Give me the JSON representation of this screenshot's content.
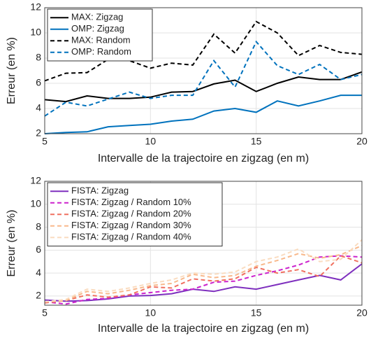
{
  "chart_data": [
    {
      "type": "line",
      "xlabel": "Intervalle de la trajectoire en zigzag (en m)",
      "ylabel": "Erreur (en %)",
      "x": [
        5,
        6,
        7,
        8,
        9,
        10,
        11,
        12,
        13,
        14,
        15,
        16,
        17,
        18,
        19,
        20
      ],
      "xlim": [
        5,
        20
      ],
      "xticks": [
        5,
        10,
        15,
        20
      ],
      "ylim": [
        2,
        12
      ],
      "yticks": [
        2,
        4,
        6,
        8,
        10,
        12
      ],
      "grid": true,
      "legend": "upper left",
      "series": [
        {
          "name": "MAX:  Zigzag",
          "color": "#000000",
          "linestyle": "solid",
          "values": [
            4.7,
            4.55,
            5.0,
            4.8,
            4.8,
            4.9,
            5.3,
            5.35,
            5.95,
            6.25,
            5.35,
            6.0,
            6.5,
            6.3,
            6.3,
            6.9
          ]
        },
        {
          "name": "OMP: Zigzag",
          "color": "#0072bd",
          "linestyle": "solid",
          "values": [
            2.0,
            2.1,
            2.15,
            2.55,
            2.65,
            2.75,
            3.0,
            3.15,
            3.8,
            4.0,
            3.7,
            4.6,
            4.2,
            4.6,
            5.05,
            5.05
          ]
        },
        {
          "name": "MAX:  Random",
          "color": "#000000",
          "linestyle": "dashed",
          "values": [
            6.2,
            6.8,
            6.85,
            7.9,
            7.8,
            7.2,
            7.6,
            7.45,
            9.9,
            8.4,
            10.9,
            10.0,
            8.2,
            9.0,
            8.45,
            8.3
          ]
        },
        {
          "name": "OMP: Random",
          "color": "#0072bd",
          "linestyle": "dashed",
          "values": [
            3.4,
            4.5,
            4.2,
            4.75,
            5.3,
            4.8,
            5.05,
            5.05,
            7.8,
            5.7,
            9.3,
            7.4,
            6.7,
            7.5,
            6.3,
            6.7
          ]
        }
      ]
    },
    {
      "type": "line",
      "xlabel": "Intervalle de la trajectoire en zigzag (en m)",
      "ylabel": "Erreur (en %)",
      "x": [
        5,
        6,
        7,
        8,
        9,
        10,
        11,
        12,
        13,
        14,
        15,
        16,
        17,
        18,
        19,
        20
      ],
      "xlim": [
        5,
        20
      ],
      "xticks": [
        5,
        10,
        15,
        20
      ],
      "ylim": [
        1.2,
        12
      ],
      "yticks": [
        2,
        4,
        6,
        8,
        10,
        12
      ],
      "grid": true,
      "legend": "upper left",
      "series": [
        {
          "name": "FISTA: Zigzag",
          "color": "#7e2fbe",
          "linestyle": "solid",
          "values": [
            1.65,
            1.55,
            1.6,
            1.75,
            2.0,
            2.05,
            2.2,
            2.6,
            2.4,
            2.8,
            2.6,
            3.0,
            3.4,
            3.8,
            3.4,
            4.8
          ]
        },
        {
          "name": "FISTA: Zigzag / Random 10%",
          "color": "#cc22cc",
          "linestyle": "dashed",
          "values": [
            1.5,
            1.3,
            1.7,
            1.8,
            2.1,
            2.3,
            2.5,
            2.6,
            3.2,
            3.3,
            3.8,
            4.2,
            4.7,
            5.4,
            5.5,
            5.4
          ]
        },
        {
          "name": "FISTA: Zigzag / Random 20%",
          "color": "#f07060",
          "linestyle": "dashed",
          "values": [
            1.4,
            1.6,
            2.1,
            1.9,
            2.1,
            2.8,
            2.7,
            3.5,
            3.3,
            3.5,
            4.5,
            4.0,
            4.3,
            3.7,
            5.5,
            4.9
          ]
        },
        {
          "name": "FISTA: Zigzag / Random 30%",
          "color": "#f8b88b",
          "linestyle": "dashed",
          "values": [
            1.5,
            1.6,
            2.4,
            2.2,
            2.5,
            2.9,
            3.1,
            3.9,
            3.6,
            3.8,
            4.6,
            5.1,
            5.7,
            5.3,
            5.6,
            6.4
          ]
        },
        {
          "name": "FISTA: Zigzag / Random 40%",
          "color": "#fadcc0",
          "linestyle": "dashed",
          "values": [
            1.5,
            1.7,
            2.6,
            2.4,
            2.7,
            3.1,
            3.4,
            4.0,
            3.9,
            4.1,
            5.0,
            5.4,
            6.1,
            5.0,
            5.2,
            6.9
          ]
        }
      ]
    }
  ]
}
